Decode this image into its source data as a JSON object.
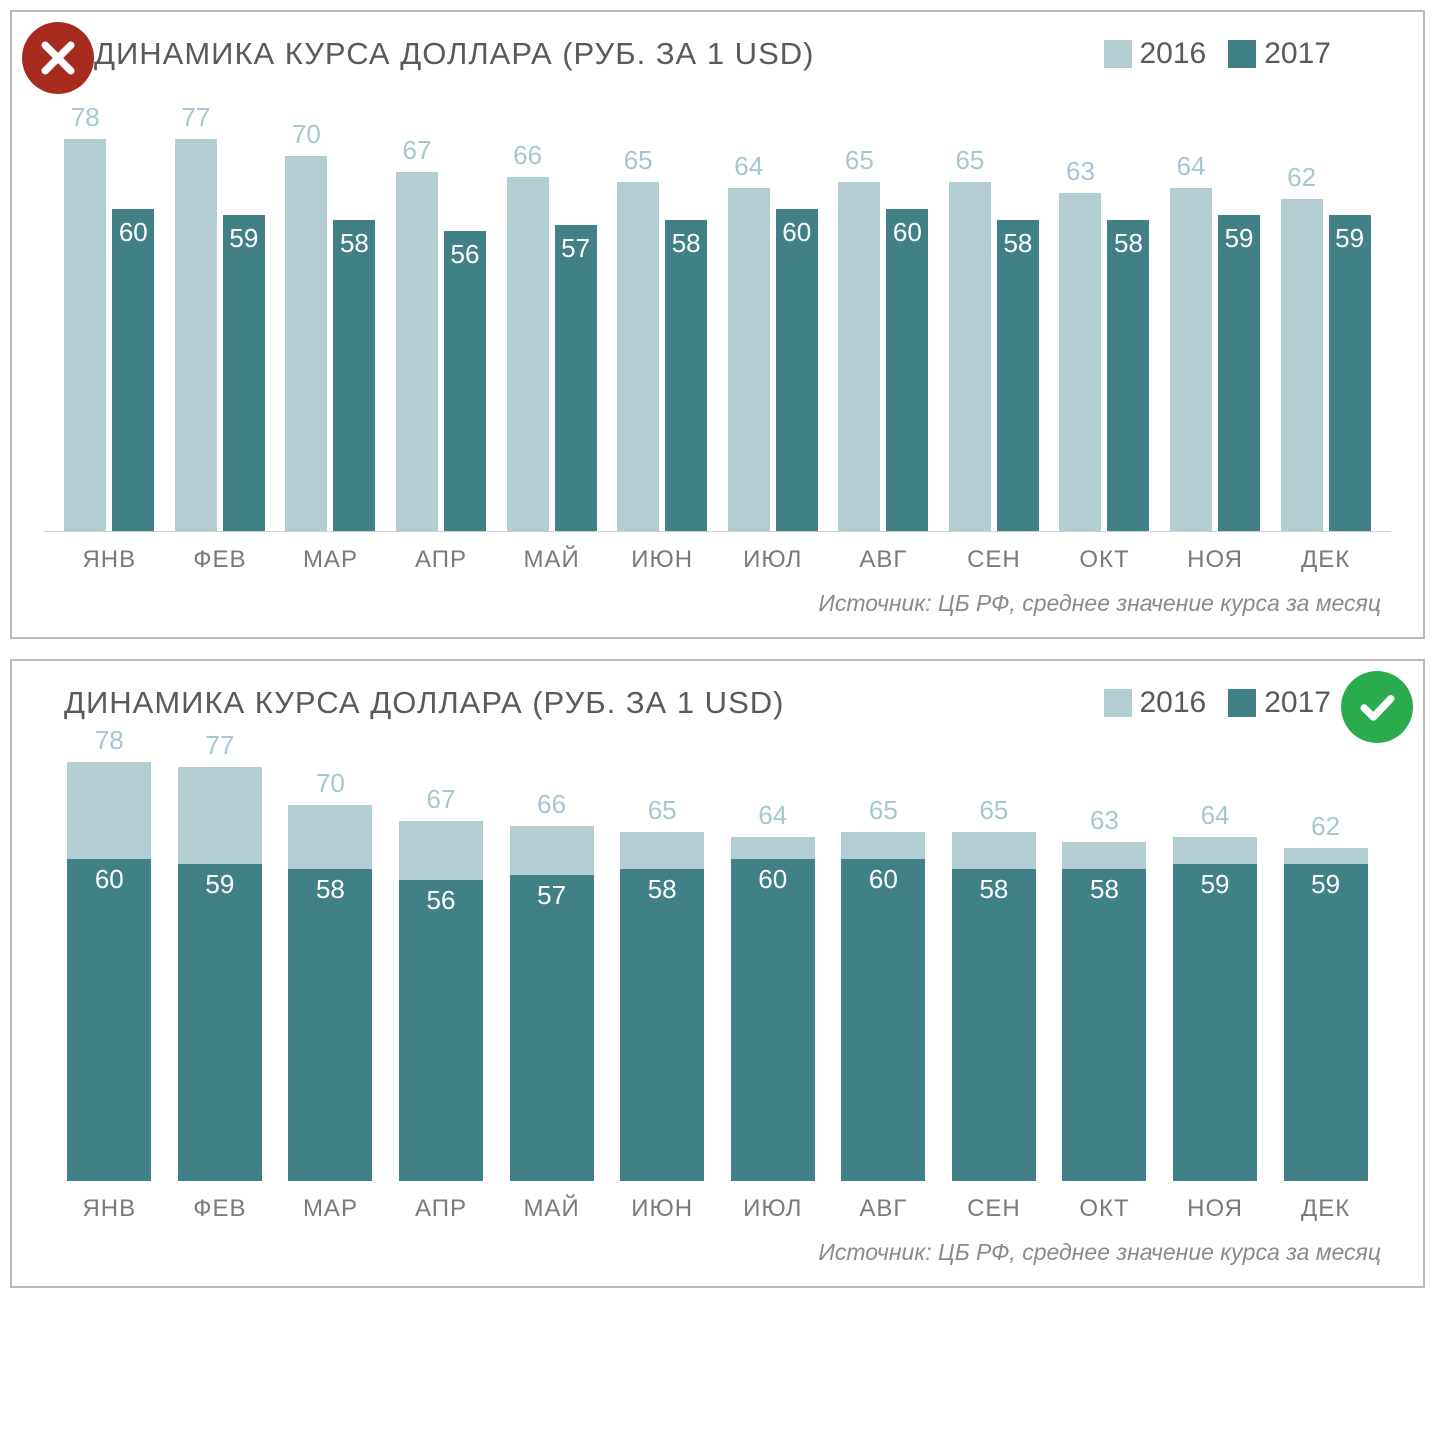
{
  "colors": {
    "series2016": "#b2ced3",
    "series2017": "#428087",
    "badgeX": "#a72c1f",
    "badgeV": "#2aac4e",
    "label2016": "#a7c7ce",
    "label2017": "#ffffff",
    "titleText": "#5a5a5a",
    "axisText": "#7a7a7a",
    "sourceText": "#8a8a8a",
    "border": "#b9b9b9"
  },
  "shared": {
    "title": "ДИНАМИКА КУРСА ДОЛЛАРА (РУБ. ЗА 1 USD)",
    "legend": {
      "a": "2016",
      "b": "2017"
    },
    "months": [
      "ЯНВ",
      "ФЕВ",
      "МАР",
      "АПР",
      "МАЙ",
      "ИЮН",
      "ИЮЛ",
      "АВГ",
      "СЕН",
      "ОКТ",
      "НОЯ",
      "ДЕК"
    ],
    "values2016": [
      78,
      77,
      70,
      67,
      66,
      65,
      64,
      65,
      65,
      63,
      64,
      62
    ],
    "values2017": [
      60,
      59,
      58,
      56,
      57,
      58,
      60,
      60,
      58,
      58,
      59,
      59
    ],
    "source": "Источник: ЦБ РФ, среднее значение курса за месяц",
    "ymax": 80,
    "title_fontsize": 31,
    "label_fontsize": 26,
    "axis_fontsize": 24,
    "source_fontsize": 23
  },
  "panel1": {
    "type": "grouped-bar",
    "badge": "x"
  },
  "panel2": {
    "type": "overlapped-bar",
    "badge": "v"
  }
}
